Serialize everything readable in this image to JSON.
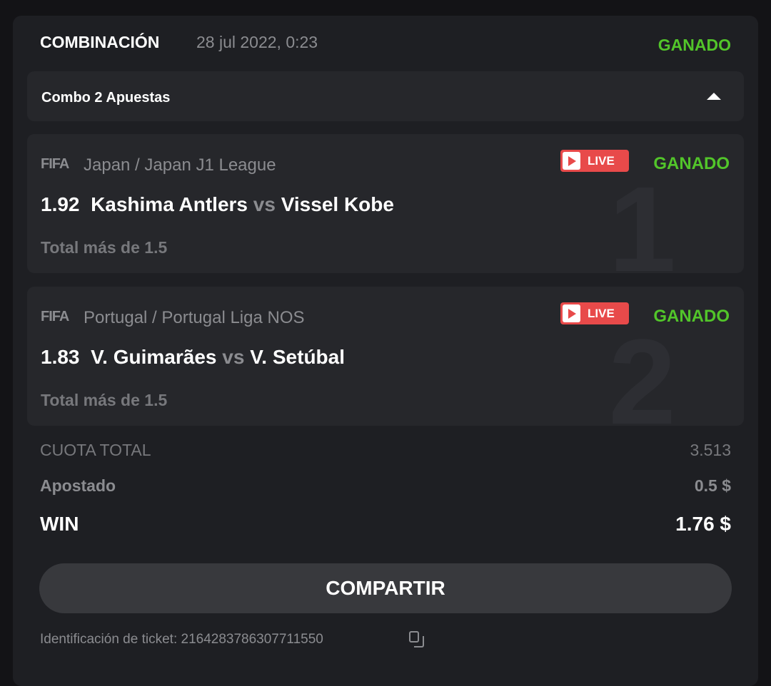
{
  "header": {
    "type": "COMBINACIÓN",
    "datetime": "28 jul 2022, 0:23",
    "status": "GANADO"
  },
  "combo": {
    "label": "Combo 2 Apuestas",
    "toggle_icon": "caret-up-icon"
  },
  "bets": [
    {
      "index": "1",
      "sport_icon": "FIFA",
      "league": "Japan / Japan J1 League",
      "live": "LIVE",
      "status": "GANADO",
      "odds": "1.92",
      "home": "Kashima Antlers",
      "vs": "vs",
      "away": "Vissel Kobe",
      "market": "Total más de 1.5"
    },
    {
      "index": "2",
      "sport_icon": "FIFA",
      "league": "Portugal / Portugal Liga NOS",
      "live": "LIVE",
      "status": "GANADO",
      "odds": "1.83",
      "home": "V. Guimarães",
      "vs": "vs",
      "away": "V. Setúbal",
      "market": "Total más de 1.5"
    }
  ],
  "summary": {
    "total_odds_label": "CUOTA TOTAL",
    "total_odds": "3.513",
    "stake_label": "Apostado",
    "stake": "0.5 $",
    "win_label": "WIN",
    "win": "1.76 $"
  },
  "share_label": "COMPARTIR",
  "ticket": {
    "label": "Identificación de ticket: 2164283786307711550",
    "copy_icon": "copy-icon"
  },
  "colors": {
    "green": "#52c52a",
    "live": "#e84a4a"
  }
}
